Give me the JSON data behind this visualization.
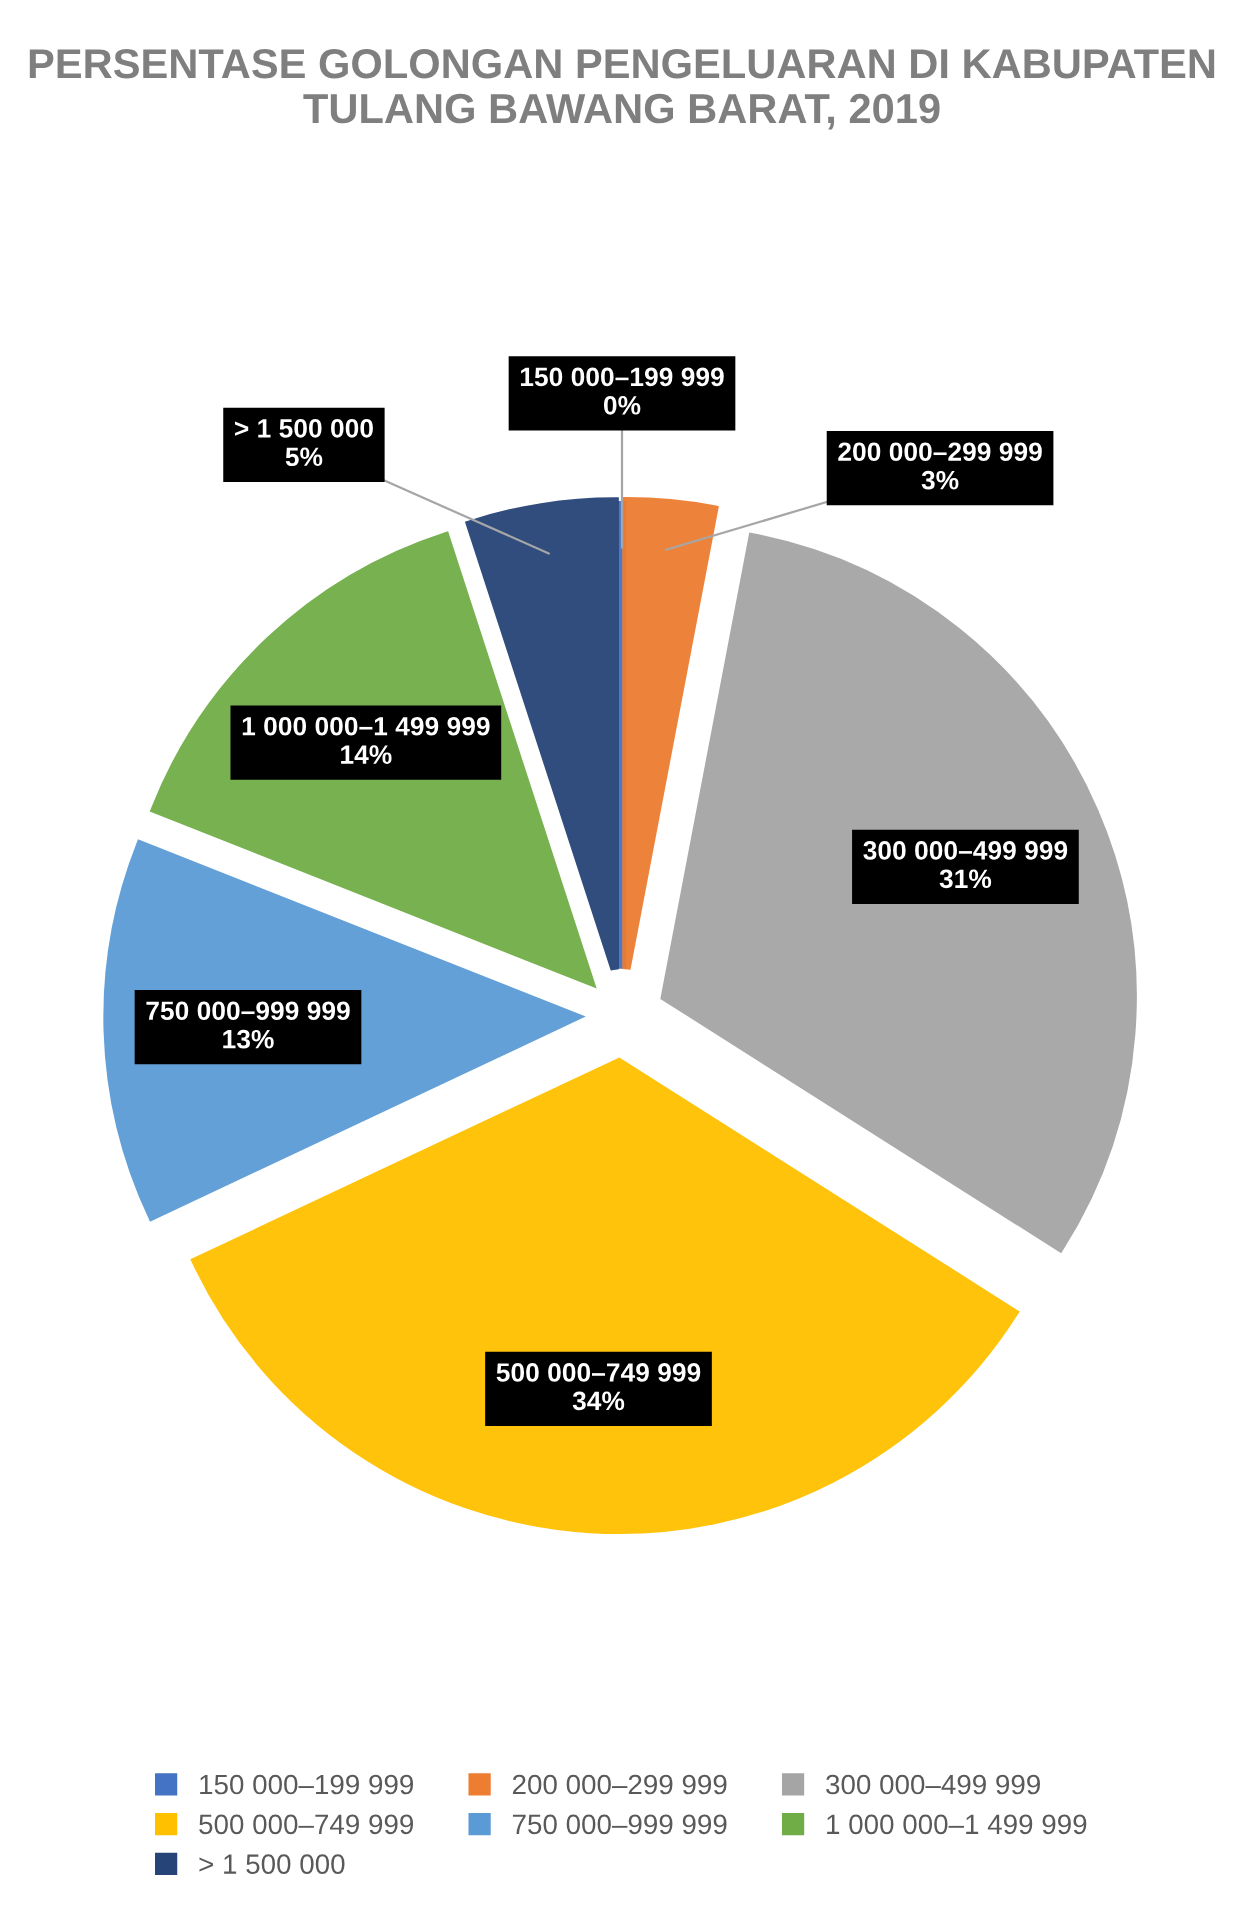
{
  "chart_data": {
    "type": "pie",
    "title": "PERSENTASE GOLONGAN PENGELUARAN DI KABUPATEN TULANG BAWANG BARAT, 2019",
    "categories": [
      "150 000–199 999",
      "200 000–299 999",
      "300 000–499 999",
      "500 000–749 999",
      "750 000–999 999",
      "1 000 000–1 499 999",
      "> 1 500 000"
    ],
    "values": [
      0,
      3,
      31,
      34,
      13,
      14,
      5
    ],
    "value_labels": [
      "0%",
      "3%",
      "31%",
      "34%",
      "13%",
      "14%",
      "5%"
    ],
    "colors": [
      "#4472c4",
      "#ed7d31",
      "#a5a5a5",
      "#ffc000",
      "#5b9bd5",
      "#70ad47",
      "#264478"
    ],
    "legend": "bottom"
  }
}
